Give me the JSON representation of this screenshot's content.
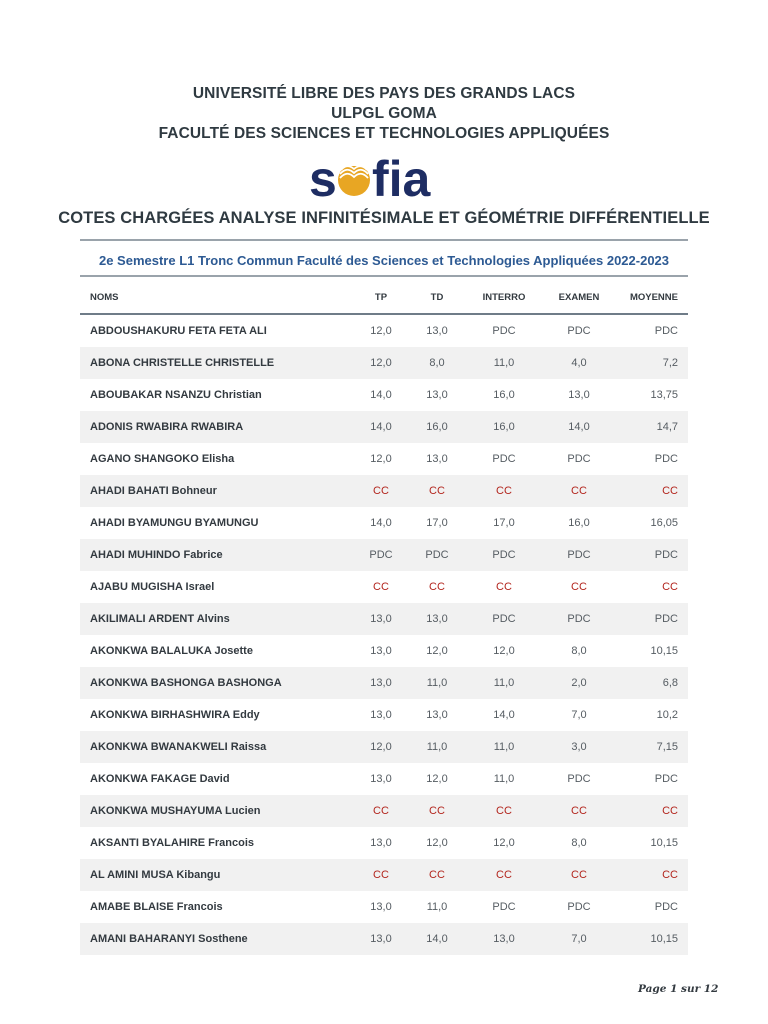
{
  "header": {
    "university": "UNIVERSITÉ LIBRE DES PAYS DES GRANDS LACS",
    "campus": "ULPGL GOMA",
    "faculty": "FACULTÉ DES SCIENCES ET TECHNOLOGIES APPLIQUÉES"
  },
  "logo": {
    "text_left": "s",
    "text_right": "fia",
    "icon": "open-book-sun-icon",
    "colors": {
      "text": "#1e2d63",
      "sun": "#e8a623"
    }
  },
  "document": {
    "title": "COTES CHARGÉES ANALYSE INFINITÉSIMALE ET GÉOMÉTRIE DIFFÉRENTIELLE",
    "subtitle": "2e Semestre L1 Tronc Commun Faculté des Sciences et Technologies Appliquées 2022-2023"
  },
  "table": {
    "columns": [
      "NOMS",
      "TP",
      "TD",
      "INTERRO",
      "EXAMEN",
      "MOYENNE"
    ],
    "rows": [
      {
        "name": "ABDOUSHAKURU FETA FETA ALI",
        "tp": "12,0",
        "td": "13,0",
        "interro": "PDC",
        "examen": "PDC",
        "moyenne": "PDC"
      },
      {
        "name": "ABONA CHRISTELLE CHRISTELLE",
        "tp": "12,0",
        "td": "8,0",
        "interro": "11,0",
        "examen": "4,0",
        "moyenne": "7,2"
      },
      {
        "name": "ABOUBAKAR NSANZU Christian",
        "tp": "14,0",
        "td": "13,0",
        "interro": "16,0",
        "examen": "13,0",
        "moyenne": "13,75"
      },
      {
        "name": "ADONIS RWABIRA RWABIRA",
        "tp": "14,0",
        "td": "16,0",
        "interro": "16,0",
        "examen": "14,0",
        "moyenne": "14,7"
      },
      {
        "name": "AGANO SHANGOKO Elisha",
        "tp": "12,0",
        "td": "13,0",
        "interro": "PDC",
        "examen": "PDC",
        "moyenne": "PDC"
      },
      {
        "name": "AHADI BAHATI Bohneur",
        "tp": "CC",
        "td": "CC",
        "interro": "CC",
        "examen": "CC",
        "moyenne": "CC"
      },
      {
        "name": "AHADI BYAMUNGU BYAMUNGU",
        "tp": "14,0",
        "td": "17,0",
        "interro": "17,0",
        "examen": "16,0",
        "moyenne": "16,05"
      },
      {
        "name": "AHADI MUHINDO Fabrice",
        "tp": "PDC",
        "td": "PDC",
        "interro": "PDC",
        "examen": "PDC",
        "moyenne": "PDC"
      },
      {
        "name": "AJABU MUGISHA Israel",
        "tp": "CC",
        "td": "CC",
        "interro": "CC",
        "examen": "CC",
        "moyenne": "CC"
      },
      {
        "name": "AKILIMALI ARDENT Alvins",
        "tp": "13,0",
        "td": "13,0",
        "interro": "PDC",
        "examen": "PDC",
        "moyenne": "PDC"
      },
      {
        "name": "AKONKWA BALALUKA Josette",
        "tp": "13,0",
        "td": "12,0",
        "interro": "12,0",
        "examen": "8,0",
        "moyenne": "10,15"
      },
      {
        "name": "AKONKWA BASHONGA BASHONGA",
        "tp": "13,0",
        "td": "11,0",
        "interro": "11,0",
        "examen": "2,0",
        "moyenne": "6,8"
      },
      {
        "name": "AKONKWA BIRHASHWIRA Eddy",
        "tp": "13,0",
        "td": "13,0",
        "interro": "14,0",
        "examen": "7,0",
        "moyenne": "10,2"
      },
      {
        "name": "AKONKWA BWANAKWELI Raissa",
        "tp": "12,0",
        "td": "11,0",
        "interro": "11,0",
        "examen": "3,0",
        "moyenne": "7,15"
      },
      {
        "name": "AKONKWA FAKAGE David",
        "tp": "13,0",
        "td": "12,0",
        "interro": "11,0",
        "examen": "PDC",
        "moyenne": "PDC"
      },
      {
        "name": "AKONKWA MUSHAYUMA Lucien",
        "tp": "CC",
        "td": "CC",
        "interro": "CC",
        "examen": "CC",
        "moyenne": "CC"
      },
      {
        "name": "AKSANTI BYALAHIRE Francois",
        "tp": "13,0",
        "td": "12,0",
        "interro": "12,0",
        "examen": "8,0",
        "moyenne": "10,15"
      },
      {
        "name": "AL AMINI MUSA Kibangu",
        "tp": "CC",
        "td": "CC",
        "interro": "CC",
        "examen": "CC",
        "moyenne": "CC"
      },
      {
        "name": "AMABE BLAISE Francois",
        "tp": "13,0",
        "td": "11,0",
        "interro": "PDC",
        "examen": "PDC",
        "moyenne": "PDC"
      },
      {
        "name": "AMANI BAHARANYI Sosthene",
        "tp": "13,0",
        "td": "14,0",
        "interro": "13,0",
        "examen": "7,0",
        "moyenne": "10,15"
      }
    ]
  },
  "footer": {
    "page": "Page 1 sur 12"
  },
  "colors": {
    "cc_status": "#b3261e",
    "subtitle": "#2d5a93",
    "row_alt": "#f1f1f1"
  }
}
